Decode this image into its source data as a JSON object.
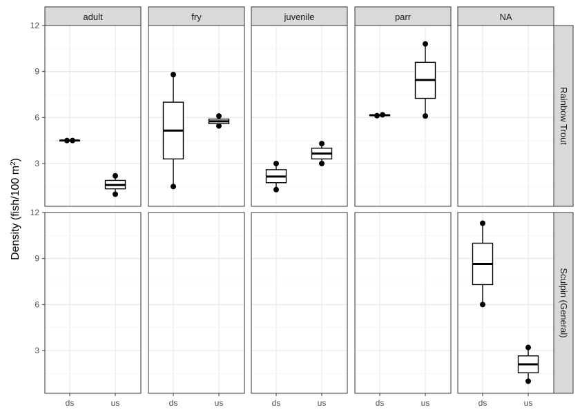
{
  "chart_data": {
    "type": "boxplot",
    "ylabel": "Density (fish/100 m²)",
    "ylabel_main": "Density (fish/100 m",
    "ylabel_sup": "2",
    "ylabel_close": ")",
    "ylim": [
      0,
      12
    ],
    "yticks": [
      3,
      6,
      9,
      12
    ],
    "x_categories": [
      "ds",
      "us"
    ],
    "col_facets": [
      "adult",
      "fry",
      "juvenile",
      "parr",
      "NA"
    ],
    "row_facets": [
      "Rainbow Trout",
      "Sculpin (General)"
    ],
    "grid": true,
    "boxes": [
      {
        "row": "Rainbow Trout",
        "col": "adult",
        "x": "ds",
        "q1": 4.5,
        "median": 4.5,
        "q3": 4.5,
        "lower": 4.5,
        "upper": 4.5,
        "points": [
          4.5,
          4.5
        ]
      },
      {
        "row": "Rainbow Trout",
        "col": "adult",
        "x": "us",
        "q1": 1.35,
        "median": 1.6,
        "q3": 1.9,
        "lower": 1.0,
        "upper": 2.2,
        "points": [
          1.0,
          2.2
        ]
      },
      {
        "row": "Rainbow Trout",
        "col": "fry",
        "x": "ds",
        "q1": 3.3,
        "median": 5.15,
        "q3": 7.0,
        "lower": 1.5,
        "upper": 8.8,
        "points": [
          1.5,
          8.8
        ]
      },
      {
        "row": "Rainbow Trout",
        "col": "fry",
        "x": "us",
        "q1": 5.6,
        "median": 5.75,
        "q3": 5.9,
        "lower": 5.45,
        "upper": 6.1,
        "points": [
          5.45,
          6.1
        ]
      },
      {
        "row": "Rainbow Trout",
        "col": "juvenile",
        "x": "ds",
        "q1": 1.75,
        "median": 2.15,
        "q3": 2.6,
        "lower": 1.3,
        "upper": 3.0,
        "points": [
          1.3,
          3.0
        ]
      },
      {
        "row": "Rainbow Trout",
        "col": "juvenile",
        "x": "us",
        "q1": 3.3,
        "median": 3.65,
        "q3": 4.0,
        "lower": 3.0,
        "upper": 4.3,
        "points": [
          3.0,
          4.3
        ]
      },
      {
        "row": "Rainbow Trout",
        "col": "parr",
        "x": "ds",
        "q1": 6.12,
        "median": 6.15,
        "q3": 6.18,
        "lower": 6.12,
        "upper": 6.18,
        "points": [
          6.12,
          6.18
        ]
      },
      {
        "row": "Rainbow Trout",
        "col": "parr",
        "x": "us",
        "q1": 7.25,
        "median": 8.45,
        "q3": 9.6,
        "lower": 6.1,
        "upper": 10.8,
        "points": [
          6.1,
          10.8
        ]
      },
      {
        "row": "Sculpin (General)",
        "col": "NA",
        "x": "ds",
        "q1": 7.3,
        "median": 8.65,
        "q3": 10.0,
        "lower": 6.0,
        "upper": 11.3,
        "points": [
          6.0,
          11.3
        ]
      },
      {
        "row": "Sculpin (General)",
        "col": "NA",
        "x": "us",
        "q1": 1.55,
        "median": 2.1,
        "q3": 2.65,
        "lower": 1.0,
        "upper": 3.2,
        "points": [
          1.0,
          3.2
        ]
      }
    ]
  }
}
